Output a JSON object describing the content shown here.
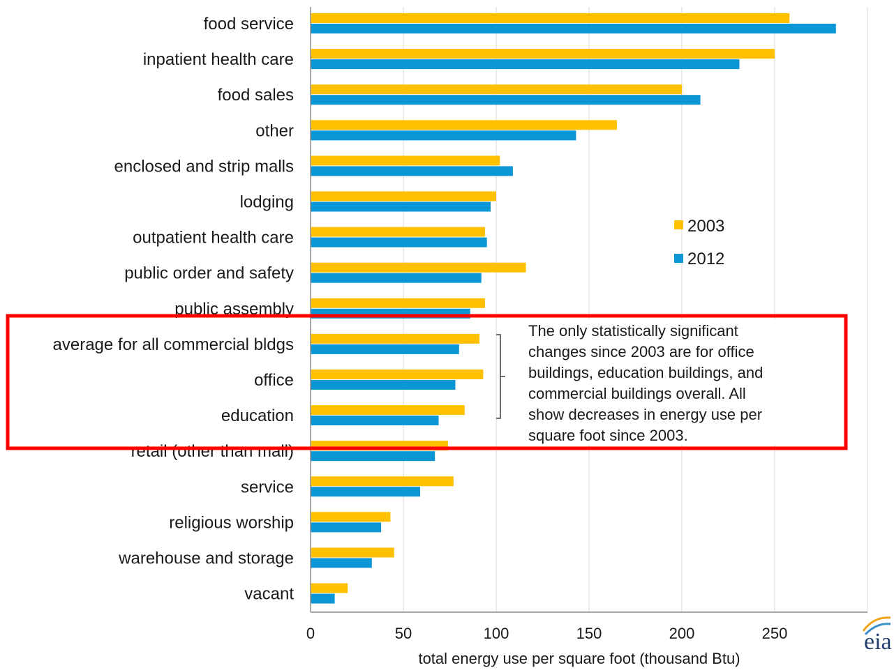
{
  "chart_data": {
    "type": "bar",
    "orientation": "horizontal",
    "title": "",
    "xlabel": "total energy use per square foot (thousand Btu)",
    "ylabel": "",
    "xlim": [
      0,
      300
    ],
    "x_ticks": [
      0,
      50,
      100,
      150,
      200,
      250
    ],
    "grid": "vertical",
    "legend_position": "right",
    "categories": [
      "food service",
      "inpatient health care",
      "food sales",
      "other",
      "enclosed and strip malls",
      "lodging",
      "outpatient health care",
      "public order and safety",
      "public assembly",
      "average for all commercial bldgs",
      "office",
      "education",
      "retail (other than mall)",
      "service",
      "religious worship",
      "warehouse and storage",
      "vacant"
    ],
    "series": [
      {
        "name": "2003",
        "color": "#FFC000",
        "values": [
          258,
          250,
          200,
          165,
          102,
          100,
          94,
          116,
          94,
          91,
          93,
          83,
          74,
          77,
          43,
          45,
          20
        ]
      },
      {
        "name": "2012",
        "color": "#0B96D5",
        "values": [
          283,
          231,
          210,
          143,
          109,
          97,
          95,
          92,
          86,
          80,
          78,
          69,
          67,
          59,
          38,
          33,
          13
        ]
      }
    ],
    "annotation": {
      "lines": [
        "The only statistically significant",
        "changes since 2003 are for office",
        "buildings, education buildings, and",
        "commercial buildings overall. All",
        "show decreases in energy use per",
        "square foot since 2003."
      ]
    },
    "highlight_box_color": "#FF0000",
    "logo_text": "eia"
  }
}
